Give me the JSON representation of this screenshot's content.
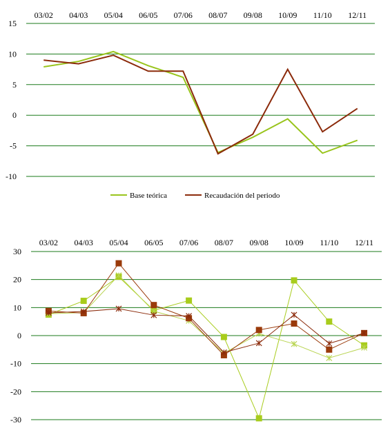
{
  "chart_data": [
    {
      "type": "line",
      "categories": [
        "03/02",
        "04/03",
        "05/04",
        "06/05",
        "07/06",
        "08/07",
        "09/08",
        "10/09",
        "11/10",
        "12/11"
      ],
      "ylim": [
        -10,
        15
      ],
      "yticks": [
        15,
        10,
        5,
        0,
        -5,
        -10
      ],
      "grid": true,
      "legend_position": "bottom",
      "series": [
        {
          "name": "Base teórica",
          "color": "#99c41c",
          "values": [
            7.9,
            8.8,
            10.4,
            8.1,
            6.2,
            -6.1,
            -3.6,
            -0.6,
            -6.2,
            -4.1
          ]
        },
        {
          "name": "Recaudación del periodo",
          "color": "#8b2a0a",
          "values": [
            9.0,
            8.4,
            9.8,
            7.2,
            7.2,
            -6.3,
            -3.1,
            7.5,
            -2.7,
            1.1
          ]
        }
      ]
    },
    {
      "type": "line",
      "categories": [
        "03/02",
        "04/03",
        "05/04",
        "06/05",
        "07/06",
        "08/07",
        "09/08",
        "10/09",
        "11/10",
        "12/11"
      ],
      "ylim": [
        -30,
        30
      ],
      "yticks": [
        30,
        20,
        10,
        0,
        -10,
        -20,
        -30
      ],
      "grid": true,
      "series": [
        {
          "color": "#a8cc1c",
          "marker": "square",
          "values": [
            7.5,
            12.4,
            21.0,
            9.0,
            12.5,
            -0.5,
            -29.5,
            19.7,
            5.0,
            -3.5
          ]
        },
        {
          "color": "#b8d450",
          "marker": "asterisk",
          "values": [
            7.8,
            8.2,
            21.5,
            8.7,
            5.3,
            -6.3,
            0.7,
            -3.0,
            -8.0,
            -4.3
          ]
        },
        {
          "color": "#9a3a0a",
          "marker": "square",
          "values": [
            8.8,
            8.0,
            25.8,
            10.9,
            6.2,
            -7.0,
            2.0,
            4.3,
            -5.0,
            0.9
          ]
        },
        {
          "color": "#8b2a0a",
          "marker": "asterisk",
          "values": [
            8.1,
            8.6,
            9.6,
            7.3,
            7.0,
            -6.0,
            -2.7,
            7.4,
            -2.8,
            0.9
          ]
        }
      ]
    }
  ]
}
